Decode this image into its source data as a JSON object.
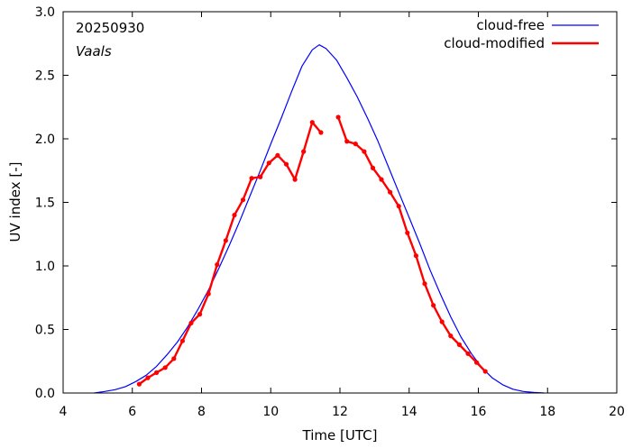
{
  "chart_data": {
    "type": "line",
    "title": "",
    "xlabel": "Time  [UTC]",
    "ylabel": "UV index  [-]",
    "xlim": [
      4,
      20
    ],
    "ylim": [
      0,
      3.0
    ],
    "xticks": [
      4,
      6,
      8,
      10,
      12,
      14,
      16,
      18,
      20
    ],
    "yticks": [
      0.0,
      0.5,
      1.0,
      1.5,
      2.0,
      2.5,
      3.0
    ],
    "x_tick_labels": [
      "4",
      "6",
      "8",
      "10",
      "12",
      "14",
      "16",
      "18",
      "20"
    ],
    "y_tick_labels": [
      "0.0",
      "0.5",
      "1.0",
      "1.5",
      "2.0",
      "2.5",
      "3.0"
    ],
    "annotations": [
      "20250930",
      "Vaals"
    ],
    "legend_position": "top-right",
    "series": [
      {
        "name": "cloud-free",
        "color": "#0000ff",
        "style": "line",
        "peak_time": 11.4,
        "peak_value": 2.74,
        "x": [
          4.9,
          5.2,
          5.5,
          5.8,
          6.1,
          6.4,
          6.7,
          7.0,
          7.3,
          7.6,
          7.9,
          8.2,
          8.5,
          8.8,
          9.1,
          9.4,
          9.7,
          10.0,
          10.3,
          10.6,
          10.9,
          11.2,
          11.4,
          11.6,
          11.9,
          12.2,
          12.5,
          12.8,
          13.1,
          13.4,
          13.7,
          14.0,
          14.3,
          14.6,
          14.9,
          15.2,
          15.5,
          15.8,
          16.1,
          16.4,
          16.7,
          17.0,
          17.3,
          17.6,
          17.9
        ],
        "values": [
          0.0,
          0.012,
          0.026,
          0.05,
          0.09,
          0.14,
          0.21,
          0.3,
          0.4,
          0.52,
          0.66,
          0.81,
          0.98,
          1.16,
          1.35,
          1.55,
          1.75,
          1.96,
          2.16,
          2.37,
          2.57,
          2.7,
          2.74,
          2.71,
          2.62,
          2.48,
          2.33,
          2.16,
          1.98,
          1.78,
          1.58,
          1.38,
          1.18,
          0.97,
          0.78,
          0.6,
          0.44,
          0.31,
          0.2,
          0.12,
          0.065,
          0.03,
          0.012,
          0.004,
          0.0
        ]
      },
      {
        "name": "cloud-modified",
        "color": "#ff0000",
        "style": "line-markers",
        "segments": [
          {
            "x": [
              6.2,
              6.45,
              6.7,
              6.95,
              7.2,
              7.45,
              7.7,
              7.95,
              8.2,
              8.45,
              8.7,
              8.95,
              9.2,
              9.45,
              9.7,
              9.95,
              10.2,
              10.45,
              10.7,
              10.95,
              11.2,
              11.45
            ],
            "values": [
              0.07,
              0.12,
              0.16,
              0.2,
              0.27,
              0.41,
              0.55,
              0.62,
              0.78,
              1.01,
              1.2,
              1.4,
              1.52,
              1.69,
              1.7,
              1.81,
              1.87,
              1.8,
              1.68,
              1.9,
              2.13,
              2.05
            ]
          },
          {
            "x": [
              11.95,
              12.2,
              12.45,
              12.7,
              12.95,
              13.2,
              13.45,
              13.7,
              13.95,
              14.2,
              14.45,
              14.7,
              14.95,
              15.2,
              15.45,
              15.7,
              15.95,
              16.2
            ],
            "values": [
              2.17,
              1.98,
              1.96,
              1.9,
              1.77,
              1.68,
              1.58,
              1.47,
              1.26,
              1.08,
              0.86,
              0.69,
              0.56,
              0.45,
              0.38,
              0.31,
              0.24,
              0.17
            ]
          }
        ]
      }
    ]
  }
}
